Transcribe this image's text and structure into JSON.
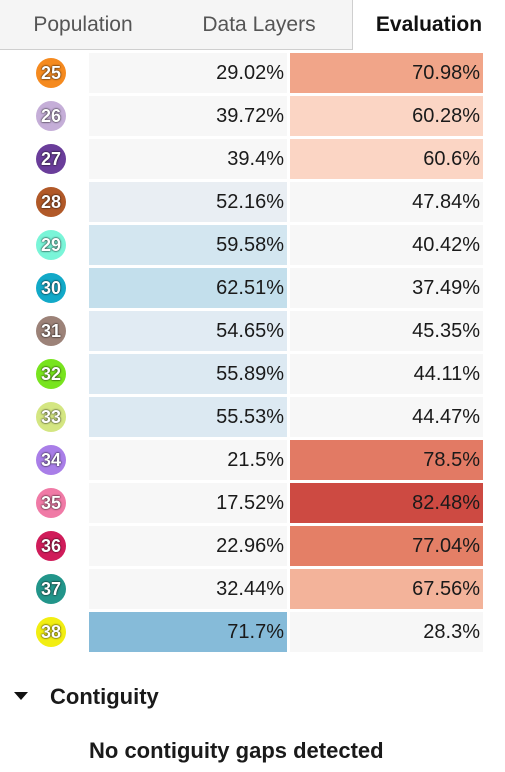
{
  "tabs": [
    {
      "label": "Population",
      "active": false
    },
    {
      "label": "Data Layers",
      "active": false
    },
    {
      "label": "Evaluation",
      "active": true
    }
  ],
  "districts": [
    {
      "number": "25",
      "color": "#f58a1f",
      "a": "29.02%",
      "b": "70.98%",
      "a_bg": "#f7f7f7",
      "b_bg": "#f1a589"
    },
    {
      "number": "26",
      "color": "#c5aed8",
      "a": "39.72%",
      "b": "60.28%",
      "a_bg": "#f7f7f7",
      "b_bg": "#fbd5c4"
    },
    {
      "number": "27",
      "color": "#6a3d9a",
      "a": "39.4%",
      "b": "60.6%",
      "a_bg": "#f7f7f7",
      "b_bg": "#fbd5c4"
    },
    {
      "number": "28",
      "color": "#b15928",
      "a": "52.16%",
      "b": "47.84%",
      "a_bg": "#e9eef3",
      "b_bg": "#f7f7f7"
    },
    {
      "number": "29",
      "color": "#7af5d8",
      "a": "59.58%",
      "b": "40.42%",
      "a_bg": "#d3e6f0",
      "b_bg": "#f7f7f7"
    },
    {
      "number": "30",
      "color": "#12a9c8",
      "a": "62.51%",
      "b": "37.49%",
      "a_bg": "#c3dfec",
      "b_bg": "#f7f7f7"
    },
    {
      "number": "31",
      "color": "#9c8278",
      "a": "54.65%",
      "b": "45.35%",
      "a_bg": "#e1ebf3",
      "b_bg": "#f7f7f7"
    },
    {
      "number": "32",
      "color": "#78e41e",
      "a": "55.89%",
      "b": "44.11%",
      "a_bg": "#dce9f2",
      "b_bg": "#f7f7f7"
    },
    {
      "number": "33",
      "color": "#d4e682",
      "a": "55.53%",
      "b": "44.47%",
      "a_bg": "#dce9f2",
      "b_bg": "#f7f7f7"
    },
    {
      "number": "34",
      "color": "#a97ee8",
      "a": "21.5%",
      "b": "78.5%",
      "a_bg": "#f7f7f7",
      "b_bg": "#e27a64"
    },
    {
      "number": "35",
      "color": "#f07aa6",
      "a": "17.52%",
      "b": "82.48%",
      "a_bg": "#f7f7f7",
      "b_bg": "#cd4a42"
    },
    {
      "number": "36",
      "color": "#d01c5a",
      "a": "22.96%",
      "b": "77.04%",
      "a_bg": "#f7f7f7",
      "b_bg": "#e47f66"
    },
    {
      "number": "37",
      "color": "#22958a",
      "a": "32.44%",
      "b": "67.56%",
      "a_bg": "#f7f7f7",
      "b_bg": "#f3b39a"
    },
    {
      "number": "38",
      "color": "#f2ee12",
      "a": "71.7%",
      "b": "28.3%",
      "a_bg": "#86bbd9",
      "b_bg": "#f7f7f7"
    }
  ],
  "contiguity": {
    "title": "Contiguity",
    "message": "No contiguity gaps detected",
    "expanded": true
  }
}
